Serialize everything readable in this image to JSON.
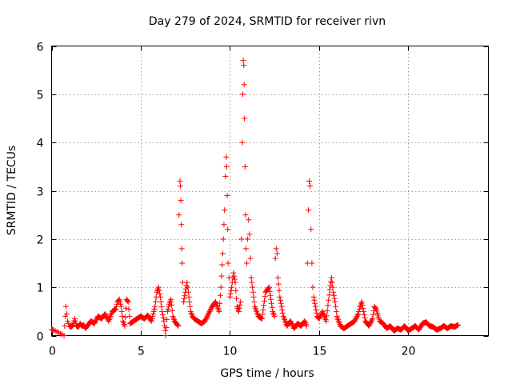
{
  "chart_data": {
    "type": "scatter",
    "title": "Day 279 of 2024, SRMTID for receiver rivn",
    "xlabel": "GPS time / hours",
    "ylabel": "SRMTID / TECUs",
    "xlim": [
      0,
      24.5
    ],
    "ylim": [
      0,
      6
    ],
    "xticks": [
      0,
      5,
      10,
      15,
      20
    ],
    "yticks": [
      0,
      1,
      2,
      3,
      4,
      5,
      6
    ],
    "grid": true,
    "marker": "plus",
    "color": "#ff0000",
    "series": [
      {
        "name": "SRMTID",
        "x": [
          0.0,
          0.1,
          0.7,
          0.8,
          0.85,
          0.9,
          0.95,
          1.0,
          1.1,
          1.2,
          1.3,
          1.4,
          1.5,
          1.6,
          1.7,
          1.8,
          1.9,
          2.0,
          2.2,
          2.4,
          2.6,
          2.8,
          3.0,
          3.2,
          3.4,
          3.6,
          3.7,
          3.8,
          3.9,
          4.0,
          4.1,
          4.2,
          4.3,
          4.4,
          4.6,
          4.8,
          5.0,
          5.2,
          5.4,
          5.6,
          5.8,
          5.9,
          6.0,
          6.1,
          6.2,
          6.3,
          6.4,
          6.5,
          6.6,
          6.7,
          6.8,
          6.9,
          7.0,
          7.1,
          7.15,
          7.2,
          7.22,
          7.25,
          7.28,
          7.3,
          7.32,
          7.35,
          7.4,
          7.5,
          7.6,
          7.7,
          7.8,
          7.9,
          8.0,
          8.2,
          8.4,
          8.6,
          8.8,
          9.0,
          9.2,
          9.4,
          9.5,
          9.6,
          9.7,
          9.75,
          9.8,
          9.82,
          9.85,
          9.88,
          9.9,
          9.95,
          10.0,
          10.1,
          10.2,
          10.3,
          10.4,
          10.5,
          10.6,
          10.65,
          10.7,
          10.72,
          10.75,
          10.78,
          10.8,
          10.82,
          10.85,
          10.88,
          10.9,
          10.95,
          11.0,
          11.05,
          11.1,
          11.15,
          11.2,
          11.3,
          11.4,
          11.6,
          11.8,
          12.0,
          12.2,
          12.4,
          12.5,
          12.55,
          12.6,
          12.65,
          12.7,
          12.8,
          13.0,
          13.2,
          13.4,
          13.6,
          13.8,
          14.0,
          14.2,
          14.3,
          14.35,
          14.4,
          14.45,
          14.5,
          14.55,
          14.6,
          14.65,
          14.7,
          14.8,
          14.9,
          15.0,
          15.2,
          15.4,
          15.6,
          15.7,
          15.8,
          15.9,
          16.0,
          16.2,
          16.4,
          16.6,
          16.8,
          17.0,
          17.2,
          17.3,
          17.4,
          17.5,
          17.6,
          17.8,
          18.0,
          18.1,
          18.2,
          18.4,
          18.6,
          18.8,
          19.0,
          19.2,
          19.4,
          19.6,
          19.8,
          20.0,
          20.2,
          20.4,
          20.6,
          20.8,
          21.0,
          21.2,
          21.4,
          21.6,
          21.8,
          22.0,
          22.2,
          22.4,
          22.6,
          22.8
        ],
        "y": [
          0.12,
          0.12,
          0.0,
          0.6,
          0.45,
          0.3,
          0.25,
          0.2,
          0.18,
          0.22,
          0.35,
          0.2,
          0.18,
          0.25,
          0.2,
          0.22,
          0.15,
          0.2,
          0.3,
          0.25,
          0.4,
          0.35,
          0.45,
          0.3,
          0.5,
          0.55,
          0.7,
          0.75,
          0.6,
          0.3,
          0.2,
          0.75,
          0.7,
          0.25,
          0.3,
          0.35,
          0.4,
          0.35,
          0.42,
          0.3,
          0.6,
          0.9,
          1.0,
          0.8,
          0.5,
          0.3,
          0.0,
          0.5,
          0.65,
          0.75,
          0.4,
          0.3,
          0.25,
          0.2,
          2.5,
          3.2,
          3.1,
          2.8,
          2.3,
          1.8,
          1.5,
          1.1,
          0.7,
          0.9,
          1.1,
          0.8,
          0.5,
          0.4,
          0.35,
          0.3,
          0.25,
          0.3,
          0.45,
          0.6,
          0.7,
          0.5,
          1.0,
          1.7,
          2.6,
          3.3,
          3.7,
          3.5,
          2.9,
          2.2,
          1.5,
          1.2,
          0.8,
          1.0,
          1.3,
          1.1,
          0.6,
          0.5,
          0.7,
          2.0,
          4.0,
          5.0,
          5.7,
          5.6,
          5.2,
          4.5,
          3.5,
          2.5,
          1.8,
          1.5,
          2.0,
          2.4,
          2.1,
          1.6,
          1.2,
          0.9,
          0.6,
          0.4,
          0.35,
          0.9,
          1.0,
          0.5,
          0.4,
          1.6,
          1.8,
          1.7,
          1.2,
          0.8,
          0.4,
          0.2,
          0.3,
          0.15,
          0.25,
          0.2,
          0.3,
          0.2,
          1.5,
          2.6,
          3.2,
          3.1,
          2.2,
          1.5,
          1.0,
          0.8,
          0.6,
          0.4,
          0.35,
          0.5,
          0.3,
          0.95,
          1.2,
          0.9,
          0.7,
          0.4,
          0.2,
          0.15,
          0.2,
          0.25,
          0.3,
          0.45,
          0.6,
          0.7,
          0.5,
          0.3,
          0.2,
          0.35,
          0.6,
          0.55,
          0.3,
          0.25,
          0.15,
          0.2,
          0.1,
          0.15,
          0.12,
          0.2,
          0.1,
          0.15,
          0.2,
          0.12,
          0.25,
          0.28,
          0.2,
          0.18,
          0.12,
          0.15,
          0.2,
          0.15,
          0.2,
          0.18,
          0.22
        ]
      }
    ]
  }
}
